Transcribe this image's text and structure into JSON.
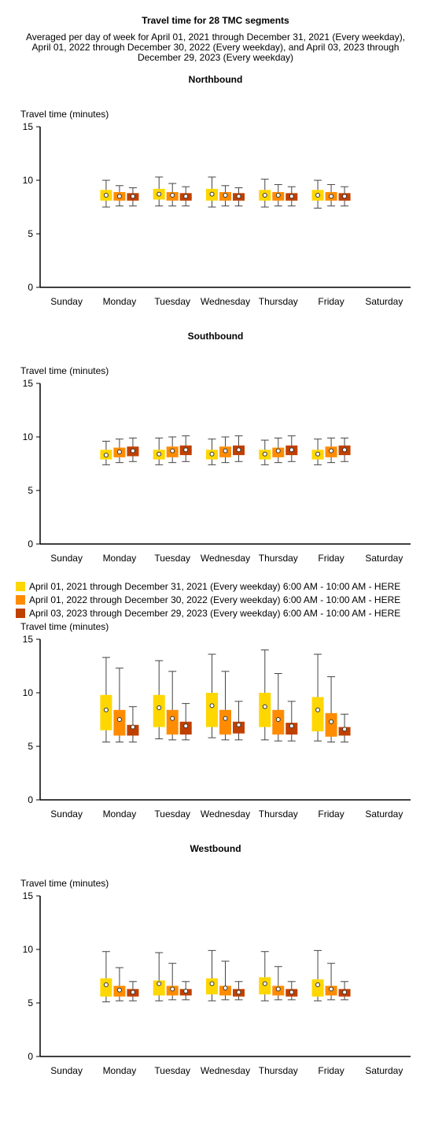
{
  "title": "Travel time for 28 TMC segments",
  "subtitle_lines": [
    "Averaged per day of week for April 01, 2021 through December 31, 2021 (Every weekday),",
    "April 01, 2022 through December 30, 2022 (Every weekday), and April 03, 2023 through",
    "December 29, 2023 (Every weekday)"
  ],
  "legend": [
    {
      "label": "April 01, 2021 through December 31, 2021 (Every weekday) 6:00 AM - 10:00 AM - HERE",
      "color": "#FFD700"
    },
    {
      "label": "April 01, 2022 through December 30, 2022 (Every weekday) 6:00 AM - 10:00 AM - HERE",
      "color": "#FF8C00"
    },
    {
      "label": "April 03, 2023 through December 29, 2023 (Every weekday) 6:00 AM - 10:00 AM - HERE",
      "color": "#C04000"
    }
  ],
  "chart_data": [
    {
      "type": "boxplot",
      "title": "Northbound",
      "ylabel": "Travel time (minutes)",
      "ylim": [
        0,
        15
      ],
      "yticks": [
        0,
        5,
        10,
        15
      ],
      "categories": [
        "Sunday",
        "Monday",
        "Tuesday",
        "Wednesday",
        "Thursday",
        "Friday",
        "Saturday"
      ],
      "series": [
        {
          "color": "#FFD700",
          "values": [
            null,
            {
              "min": 7.5,
              "q1": 8.1,
              "median": 8.5,
              "mean": 8.6,
              "q3": 9.1,
              "max": 10.0
            },
            {
              "min": 7.6,
              "q1": 8.2,
              "median": 8.6,
              "mean": 8.7,
              "q3": 9.2,
              "max": 10.3
            },
            {
              "min": 7.5,
              "q1": 8.1,
              "median": 8.6,
              "mean": 8.7,
              "q3": 9.2,
              "max": 10.3
            },
            {
              "min": 7.5,
              "q1": 8.1,
              "median": 8.5,
              "mean": 8.6,
              "q3": 9.1,
              "max": 10.1
            },
            {
              "min": 7.4,
              "q1": 8.1,
              "median": 8.5,
              "mean": 8.6,
              "q3": 9.1,
              "max": 10.0
            },
            null
          ]
        },
        {
          "color": "#FF8C00",
          "values": [
            null,
            {
              "min": 7.6,
              "q1": 8.1,
              "median": 8.5,
              "mean": 8.5,
              "q3": 8.9,
              "max": 9.5
            },
            {
              "min": 7.6,
              "q1": 8.1,
              "median": 8.5,
              "mean": 8.6,
              "q3": 8.9,
              "max": 9.7
            },
            {
              "min": 7.6,
              "q1": 8.1,
              "median": 8.5,
              "mean": 8.6,
              "q3": 8.9,
              "max": 9.5
            },
            {
              "min": 7.6,
              "q1": 8.1,
              "median": 8.5,
              "mean": 8.6,
              "q3": 8.9,
              "max": 9.6
            },
            {
              "min": 7.6,
              "q1": 8.1,
              "median": 8.5,
              "mean": 8.5,
              "q3": 8.9,
              "max": 9.6
            },
            null
          ]
        },
        {
          "color": "#C04000",
          "values": [
            null,
            {
              "min": 7.6,
              "q1": 8.1,
              "median": 8.5,
              "mean": 8.5,
              "q3": 8.8,
              "max": 9.3
            },
            {
              "min": 7.6,
              "q1": 8.1,
              "median": 8.4,
              "mean": 8.5,
              "q3": 8.8,
              "max": 9.4
            },
            {
              "min": 7.6,
              "q1": 8.1,
              "median": 8.4,
              "mean": 8.5,
              "q3": 8.8,
              "max": 9.3
            },
            {
              "min": 7.6,
              "q1": 8.1,
              "median": 8.4,
              "mean": 8.5,
              "q3": 8.8,
              "max": 9.4
            },
            {
              "min": 7.6,
              "q1": 8.1,
              "median": 8.4,
              "mean": 8.5,
              "q3": 8.8,
              "max": 9.4
            },
            null
          ]
        }
      ]
    },
    {
      "type": "boxplot",
      "title": "Southbound",
      "ylabel": "Travel time (minutes)",
      "ylim": [
        0,
        15
      ],
      "yticks": [
        0,
        5,
        10,
        15
      ],
      "categories": [
        "Sunday",
        "Monday",
        "Tuesday",
        "Wednesday",
        "Thursday",
        "Friday",
        "Saturday"
      ],
      "series": [
        {
          "color": "#FFD700",
          "values": [
            null,
            {
              "min": 7.4,
              "q1": 7.9,
              "median": 8.3,
              "mean": 8.3,
              "q3": 8.8,
              "max": 9.6
            },
            {
              "min": 7.4,
              "q1": 7.9,
              "median": 8.4,
              "mean": 8.4,
              "q3": 8.8,
              "max": 9.9
            },
            {
              "min": 7.4,
              "q1": 7.9,
              "median": 8.4,
              "mean": 8.4,
              "q3": 8.8,
              "max": 9.8
            },
            {
              "min": 7.4,
              "q1": 7.9,
              "median": 8.4,
              "mean": 8.4,
              "q3": 8.8,
              "max": 9.7
            },
            {
              "min": 7.4,
              "q1": 7.9,
              "median": 8.4,
              "mean": 8.4,
              "q3": 8.8,
              "max": 9.8
            },
            null
          ]
        },
        {
          "color": "#FF8C00",
          "values": [
            null,
            {
              "min": 7.6,
              "q1": 8.1,
              "median": 8.6,
              "mean": 8.6,
              "q3": 9.0,
              "max": 9.8
            },
            {
              "min": 7.6,
              "q1": 8.1,
              "median": 8.6,
              "mean": 8.7,
              "q3": 9.1,
              "max": 10.0
            },
            {
              "min": 7.6,
              "q1": 8.1,
              "median": 8.6,
              "mean": 8.7,
              "q3": 9.1,
              "max": 10.0
            },
            {
              "min": 7.6,
              "q1": 8.1,
              "median": 8.6,
              "mean": 8.7,
              "q3": 9.0,
              "max": 9.9
            },
            {
              "min": 7.6,
              "q1": 8.1,
              "median": 8.6,
              "mean": 8.7,
              "q3": 9.1,
              "max": 9.9
            },
            null
          ]
        },
        {
          "color": "#C04000",
          "values": [
            null,
            {
              "min": 7.7,
              "q1": 8.2,
              "median": 8.7,
              "mean": 8.7,
              "q3": 9.1,
              "max": 9.9
            },
            {
              "min": 7.7,
              "q1": 8.3,
              "median": 8.7,
              "mean": 8.8,
              "q3": 9.2,
              "max": 10.1
            },
            {
              "min": 7.7,
              "q1": 8.3,
              "median": 8.7,
              "mean": 8.8,
              "q3": 9.2,
              "max": 10.1
            },
            {
              "min": 7.7,
              "q1": 8.3,
              "median": 8.7,
              "mean": 8.8,
              "q3": 9.2,
              "max": 10.1
            },
            {
              "min": 7.7,
              "q1": 8.3,
              "median": 8.7,
              "mean": 8.8,
              "q3": 9.2,
              "max": 9.9
            },
            null
          ]
        }
      ]
    },
    {
      "type": "boxplot",
      "title": "",
      "ylabel": "Travel time (minutes)",
      "ylim": [
        0,
        15
      ],
      "yticks": [
        0,
        5,
        10,
        15
      ],
      "categories": [
        "Sunday",
        "Monday",
        "Tuesday",
        "Wednesday",
        "Thursday",
        "Friday",
        "Saturday"
      ],
      "series": [
        {
          "color": "#FFD700",
          "values": [
            null,
            {
              "min": 5.4,
              "q1": 6.5,
              "median": 7.8,
              "mean": 8.4,
              "q3": 9.8,
              "max": 13.3
            },
            {
              "min": 5.7,
              "q1": 6.8,
              "median": 8.0,
              "mean": 8.6,
              "q3": 9.8,
              "max": 13.0
            },
            {
              "min": 5.8,
              "q1": 6.8,
              "median": 8.2,
              "mean": 8.8,
              "q3": 10.0,
              "max": 13.6
            },
            {
              "min": 5.6,
              "q1": 6.8,
              "median": 8.2,
              "mean": 8.7,
              "q3": 10.0,
              "max": 14.0
            },
            {
              "min": 5.5,
              "q1": 6.4,
              "median": 7.8,
              "mean": 8.4,
              "q3": 9.6,
              "max": 13.6
            },
            null
          ]
        },
        {
          "color": "#FF8C00",
          "values": [
            null,
            {
              "min": 5.4,
              "q1": 6.0,
              "median": 7.0,
              "mean": 7.5,
              "q3": 8.4,
              "max": 12.3
            },
            {
              "min": 5.6,
              "q1": 6.1,
              "median": 7.1,
              "mean": 7.6,
              "q3": 8.4,
              "max": 12.0
            },
            {
              "min": 5.6,
              "q1": 6.1,
              "median": 7.1,
              "mean": 7.6,
              "q3": 8.4,
              "max": 12.0
            },
            {
              "min": 5.5,
              "q1": 6.1,
              "median": 7.0,
              "mean": 7.5,
              "q3": 8.4,
              "max": 11.8
            },
            {
              "min": 5.4,
              "q1": 5.9,
              "median": 6.8,
              "mean": 7.3,
              "q3": 8.1,
              "max": 11.5
            },
            null
          ]
        },
        {
          "color": "#C04000",
          "values": [
            null,
            {
              "min": 5.4,
              "q1": 6.0,
              "median": 6.5,
              "mean": 6.8,
              "q3": 7.0,
              "max": 8.7
            },
            {
              "min": 5.6,
              "q1": 6.1,
              "median": 6.7,
              "mean": 6.9,
              "q3": 7.3,
              "max": 9.0
            },
            {
              "min": 5.6,
              "q1": 6.2,
              "median": 6.8,
              "mean": 7.0,
              "q3": 7.3,
              "max": 9.2
            },
            {
              "min": 5.5,
              "q1": 6.1,
              "median": 6.7,
              "mean": 6.9,
              "q3": 7.2,
              "max": 9.2
            },
            {
              "min": 5.4,
              "q1": 6.0,
              "median": 6.4,
              "mean": 6.6,
              "q3": 6.8,
              "max": 8.0
            },
            null
          ]
        }
      ]
    },
    {
      "type": "boxplot",
      "title": "Westbound",
      "ylabel": "Travel time (minutes)",
      "ylim": [
        0,
        15
      ],
      "yticks": [
        0,
        5,
        10,
        15
      ],
      "categories": [
        "Sunday",
        "Monday",
        "Tuesday",
        "Wednesday",
        "Thursday",
        "Friday",
        "Saturday"
      ],
      "series": [
        {
          "color": "#FFD700",
          "values": [
            null,
            {
              "min": 5.1,
              "q1": 5.6,
              "median": 6.3,
              "mean": 6.7,
              "q3": 7.3,
              "max": 9.8
            },
            {
              "min": 5.2,
              "q1": 5.7,
              "median": 6.4,
              "mean": 6.8,
              "q3": 7.1,
              "max": 9.7
            },
            {
              "min": 5.2,
              "q1": 5.8,
              "median": 6.5,
              "mean": 6.8,
              "q3": 7.3,
              "max": 9.9
            },
            {
              "min": 5.2,
              "q1": 5.8,
              "median": 6.4,
              "mean": 6.8,
              "q3": 7.4,
              "max": 9.8
            },
            {
              "min": 5.2,
              "q1": 5.6,
              "median": 6.3,
              "mean": 6.7,
              "q3": 7.2,
              "max": 9.9
            },
            null
          ]
        },
        {
          "color": "#FF8C00",
          "values": [
            null,
            {
              "min": 5.2,
              "q1": 5.6,
              "median": 6.0,
              "mean": 6.2,
              "q3": 6.6,
              "max": 8.3
            },
            {
              "min": 5.3,
              "q1": 5.7,
              "median": 6.1,
              "mean": 6.3,
              "q3": 6.6,
              "max": 8.7
            },
            {
              "min": 5.3,
              "q1": 5.7,
              "median": 6.1,
              "mean": 6.4,
              "q3": 6.6,
              "max": 8.9
            },
            {
              "min": 5.3,
              "q1": 5.7,
              "median": 6.1,
              "mean": 6.3,
              "q3": 6.6,
              "max": 8.4
            },
            {
              "min": 5.3,
              "q1": 5.7,
              "median": 6.1,
              "mean": 6.3,
              "q3": 6.6,
              "max": 8.7
            },
            null
          ]
        },
        {
          "color": "#C04000",
          "values": [
            null,
            {
              "min": 5.2,
              "q1": 5.6,
              "median": 5.9,
              "mean": 6.0,
              "q3": 6.3,
              "max": 7.0
            },
            {
              "min": 5.3,
              "q1": 5.7,
              "median": 5.9,
              "mean": 6.1,
              "q3": 6.3,
              "max": 7.0
            },
            {
              "min": 5.3,
              "q1": 5.6,
              "median": 5.9,
              "mean": 6.0,
              "q3": 6.3,
              "max": 7.0
            },
            {
              "min": 5.3,
              "q1": 5.6,
              "median": 5.9,
              "mean": 6.0,
              "q3": 6.3,
              "max": 7.0
            },
            {
              "min": 5.3,
              "q1": 5.6,
              "median": 5.9,
              "mean": 6.0,
              "q3": 6.3,
              "max": 7.0
            },
            null
          ]
        }
      ]
    }
  ]
}
